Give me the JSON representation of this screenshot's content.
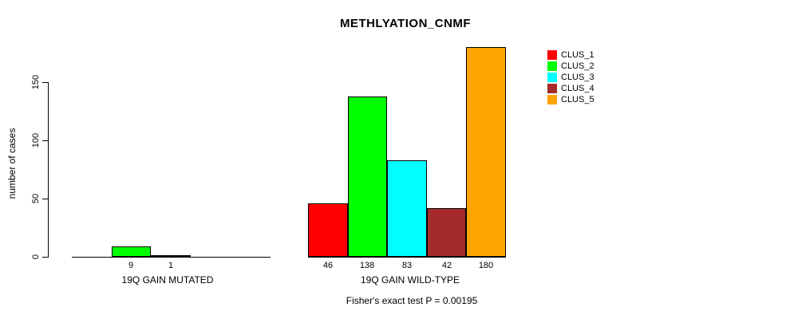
{
  "chart_data": {
    "type": "bar",
    "title": "METHLYATION_CNMF",
    "ylabel": "number of cases",
    "ylim": [
      0,
      180
    ],
    "yticks": [
      0,
      50,
      100,
      150
    ],
    "grid": false,
    "legend_position": "right-outside",
    "series": [
      {
        "name": "CLUS_1",
        "color": "#FF0000"
      },
      {
        "name": "CLUS_2",
        "color": "#00FF00"
      },
      {
        "name": "CLUS_3",
        "color": "#00FFFF"
      },
      {
        "name": "CLUS_4",
        "color": "#A52A2A"
      },
      {
        "name": "CLUS_5",
        "color": "#FFA500"
      }
    ],
    "groups": [
      {
        "label": "19Q GAIN MUTATED",
        "values": [
          0,
          9,
          1,
          0,
          0
        ],
        "bar_labels": [
          "",
          "9",
          "1",
          "",
          ""
        ]
      },
      {
        "label": "19Q GAIN WILD-TYPE",
        "values": [
          46,
          138,
          83,
          42,
          180
        ],
        "bar_labels": [
          "46",
          "138",
          "83",
          "42",
          "180"
        ]
      }
    ],
    "annotation": "Fisher's exact test P = 0.00195"
  }
}
